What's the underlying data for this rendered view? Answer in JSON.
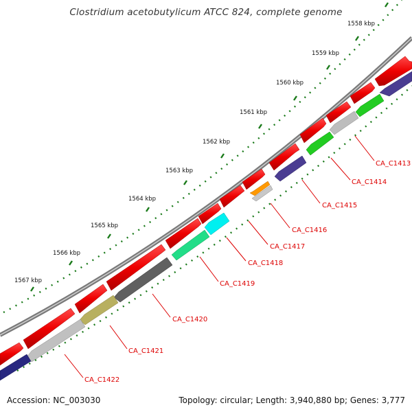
{
  "title": "Clostridium acetobutylicum ATCC 824, complete genome",
  "accession": "Accession: NC_003030",
  "summary": "Topology: circular; Length: 3,940,880 bp; Genes: 3,777",
  "colors": {
    "backbone_outer": "#808080",
    "backbone_inner": "#c8c8c8",
    "tick_green": "#1a7a1a",
    "label_red": "#dd0000",
    "cds_red": "#ee0000"
  },
  "scale_labels": [
    "1558 kbp",
    "1559 kbp",
    "1560 kbp",
    "1561 kbp",
    "1562 kbp",
    "1563 kbp",
    "1564 kbp",
    "1565 kbp",
    "1566 kbp",
    "1567 kbp"
  ],
  "gene_labels": [
    "CA_C1413",
    "CA_C1414",
    "CA_C1415",
    "CA_C1416",
    "CA_C1417",
    "CA_C1418",
    "CA_C1419",
    "CA_C1420",
    "CA_C1421",
    "CA_C1422"
  ]
}
